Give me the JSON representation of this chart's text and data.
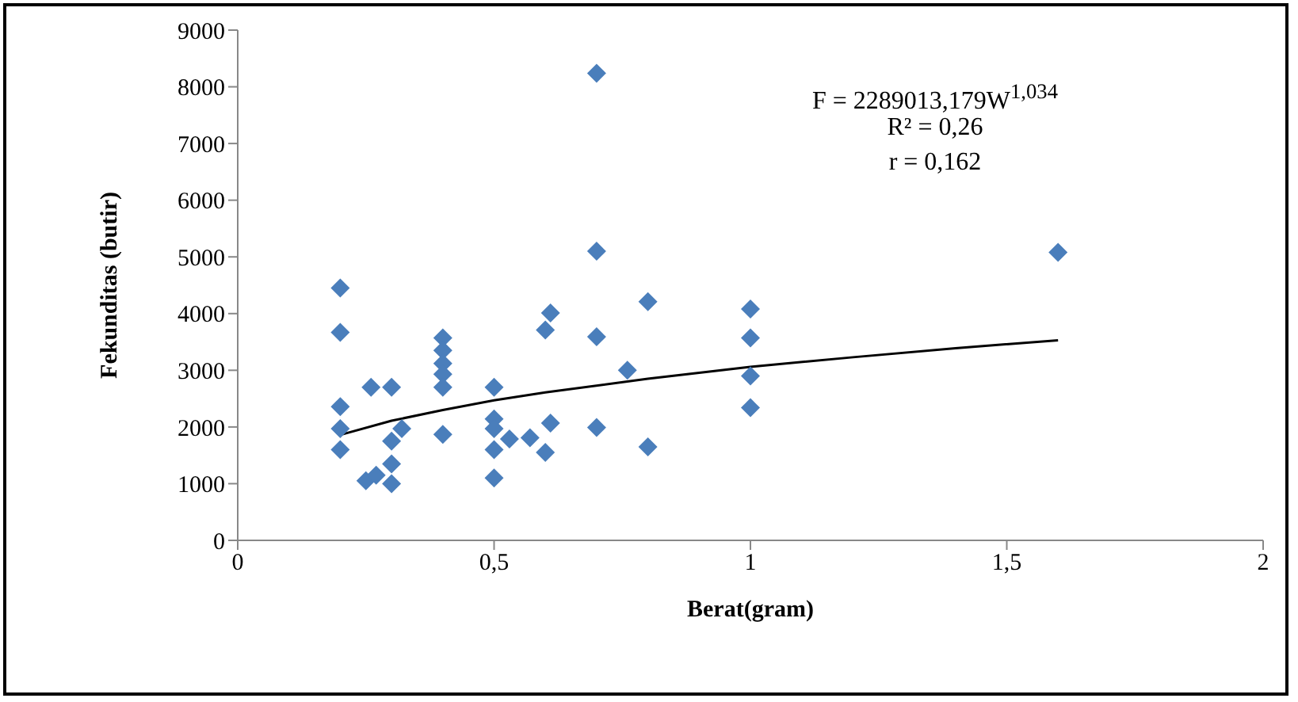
{
  "chart_data": {
    "type": "scatter",
    "xlabel": "Berat(gram)",
    "ylabel": "Fekunditas (butir)",
    "xlim": [
      0,
      2
    ],
    "xticks": [
      0,
      {
        "value": 0.5,
        "label": "0,5"
      },
      1,
      {
        "value": 1.5,
        "label": "1,5"
      },
      2
    ],
    "ylim": [
      0,
      9000
    ],
    "yticks": [
      0,
      1000,
      2000,
      3000,
      4000,
      5000,
      6000,
      7000,
      8000,
      9000
    ],
    "grid": false,
    "legend": false,
    "marker": "diamond",
    "annotations": [
      "F = 2289013,179W$^{1,034}$",
      "R² = 0,26",
      "r = 0,162"
    ],
    "series": [
      {
        "color": "#4a7ebb",
        "x": [
          0.2,
          0.2,
          0.2,
          0.2,
          0.2,
          0.25,
          0.27,
          0.26,
          0.3,
          0.3,
          0.3,
          0.3,
          0.32,
          0.4,
          0.4,
          0.4,
          0.4,
          0.4,
          0.4,
          0.5,
          0.5,
          0.5,
          0.53,
          0.5,
          0.5,
          0.57,
          0.61,
          0.6,
          0.61,
          0.6,
          0.7,
          0.7,
          0.7,
          0.7,
          0.76,
          0.8,
          0.8,
          1.0,
          1.0,
          1.0,
          1.0,
          1.6
        ],
        "values": [
          4450,
          3670,
          2360,
          1970,
          1600,
          1050,
          1150,
          2700,
          2700,
          1750,
          1350,
          1000,
          1970,
          3570,
          3350,
          3120,
          2930,
          2700,
          1870,
          2700,
          2140,
          1970,
          1790,
          1600,
          1100,
          1810,
          4010,
          3710,
          2070,
          1550,
          8240,
          5100,
          3590,
          1990,
          3000,
          4210,
          1650,
          4080,
          3570,
          2900,
          2340,
          5080
        ]
      },
      {
        "type": "line",
        "color": "#000000",
        "line_style": "solid",
        "marker": "none",
        "x": [
          0.2,
          0.3,
          0.4,
          0.5,
          0.6,
          0.8,
          1.0,
          1.2,
          1.4,
          1.6
        ],
        "values": [
          1860,
          2110,
          2300,
          2470,
          2610,
          2850,
          3060,
          3230,
          3390,
          3530
        ]
      }
    ]
  }
}
